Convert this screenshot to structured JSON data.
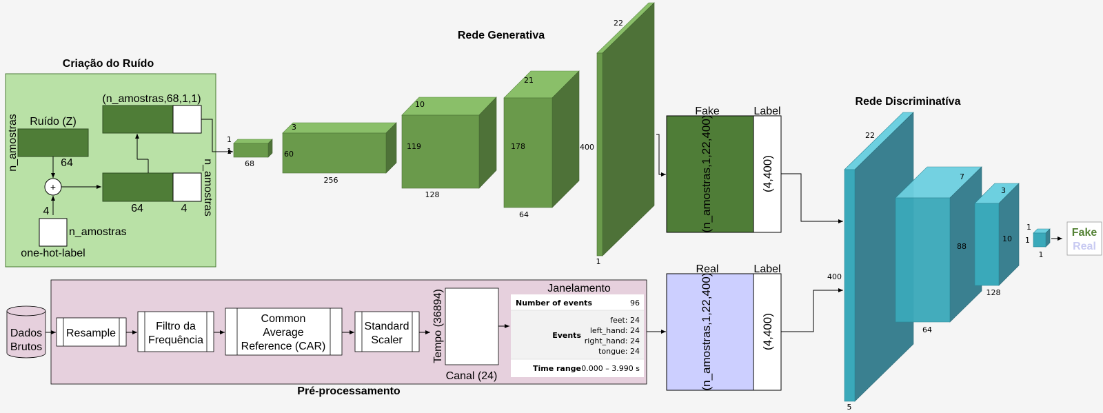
{
  "colors": {
    "green_dark": "#4f7d37",
    "green_light": "#b9e1a6",
    "pink": "#e6d0dd",
    "lavender": "#cccfff",
    "teal": "#3aa9ba"
  },
  "noise": {
    "title": "Criação do Ruído",
    "ruido_label": "Ruído (Z)",
    "n_amostras": "n_amostras",
    "dim_64": "64",
    "dim_4": "4",
    "plus": "+",
    "shape_label": "(n_amostras,68,1,1)",
    "onehot_label": "one-hot-label"
  },
  "generator": {
    "title": "Rede Generativa",
    "blocks": [
      {
        "depth": "1",
        "height": "1",
        "width": "68"
      },
      {
        "depth": "3",
        "height": "60",
        "width": "256"
      },
      {
        "depth": "10",
        "height": "119",
        "width": "128"
      },
      {
        "depth": "21",
        "height": "178",
        "width": "64"
      },
      {
        "depth": "22",
        "height": "400",
        "width": "1"
      }
    ]
  },
  "fake_block": {
    "header": "Fake",
    "label_header": "Label",
    "shape": "(n_amostras,1,22,400)",
    "label_shape": "(4,400)"
  },
  "real_block": {
    "header": "Real",
    "label_header": "Label",
    "shape": "(n_amostras,1,22,400)",
    "label_shape": "(4,400)"
  },
  "discriminator": {
    "title": "Rede Discriminatíva",
    "blocks": [
      {
        "depth": "22",
        "height": "400",
        "width": "5"
      },
      {
        "depth": "7",
        "height": "88",
        "width": "64"
      },
      {
        "depth": "3",
        "height": "10",
        "width": "128"
      },
      {
        "depth": "1",
        "height": "1",
        "width": "1"
      }
    ],
    "output_fake": "Fake",
    "output_real": "Real"
  },
  "preproc": {
    "title": "Pré-processamento",
    "raw": [
      "Dados",
      "Brutos"
    ],
    "steps": [
      {
        "lines": [
          "Resample"
        ]
      },
      {
        "lines": [
          "Filtro da",
          "Frequência"
        ]
      },
      {
        "lines": [
          "Common",
          "Average",
          "Reference (CAR)"
        ]
      },
      {
        "lines": [
          "Standard",
          "Scaler"
        ]
      }
    ],
    "tempo": "Tempo (36894)",
    "canal": "Canal (24)",
    "janelamento": "Janelamento",
    "table": {
      "row1_key": "Number of events",
      "row1_val": "96",
      "row2_key": "Events",
      "events": [
        "feet: 24",
        "left_hand: 24",
        "right_hand: 24",
        "tongue: 24"
      ],
      "row3_key": "Time range",
      "row3_val": "0.000 – 3.990 s"
    }
  }
}
